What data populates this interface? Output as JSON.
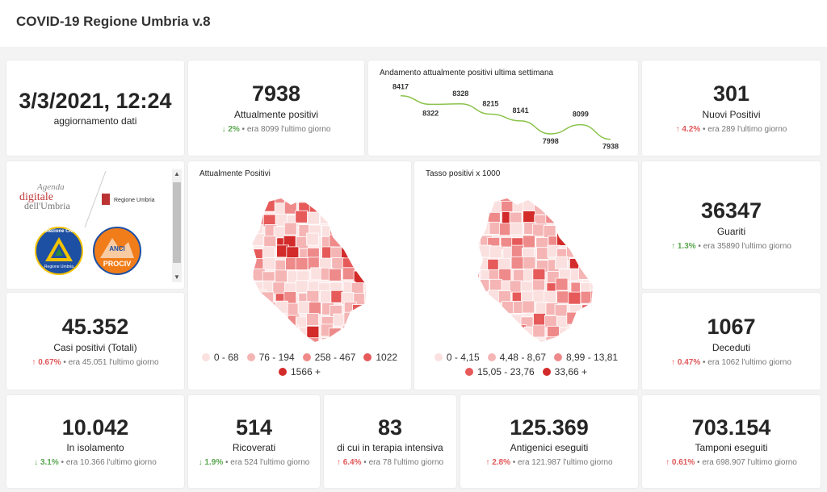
{
  "header": {
    "title": "COVID-19 Regione Umbria v.8"
  },
  "update": {
    "datetime": "3/3/2021, 12:24",
    "label": "aggiornamento dati"
  },
  "positivi": {
    "value": "7938",
    "label": "Attualmente positivi",
    "pct": "2%",
    "prev": "era 8099 l'ultimo giorno",
    "direction": "down"
  },
  "trend_chart": {
    "title": "Andamento attualmente positivi ultima settimana",
    "chart_data": {
      "type": "line",
      "values": [
        8417,
        8322,
        8328,
        8215,
        8141,
        7998,
        8099,
        7938
      ],
      "labels": [
        "8417",
        "8322",
        "8328",
        "8215",
        "8141",
        "7998",
        "8099",
        "7938"
      ],
      "color": "#8bc34a"
    }
  },
  "nuovi": {
    "value": "301",
    "label": "Nuovi Positivi",
    "pct": "4.2%",
    "prev": "era 289 l'ultimo giorno",
    "direction": "up"
  },
  "logos": {
    "agenda_line1": "Agenda",
    "agenda_line2": "digitale",
    "agenda_line3": "dell'Umbria",
    "regione": "Regione Umbria",
    "protezione": "Protezione Civile",
    "protezione_sub": "Regione Umbria",
    "anci": "ANCI",
    "prociv": "PROCIV"
  },
  "map1": {
    "title": "Attualmente Positivi",
    "legend": [
      "0 - 68",
      "76 - 194",
      "258 - 467",
      "1022",
      "1566 +"
    ],
    "colors": [
      "#fbe0e0",
      "#f5b5b5",
      "#ef8a8a",
      "#e65a5a",
      "#d32a2a"
    ]
  },
  "map2": {
    "title": "Tasso positivi x 1000",
    "legend": [
      "0 - 4,15",
      "4,48 - 8,67",
      "8,99 - 13,81",
      "15,05 - 23,76",
      "33,66 +"
    ],
    "colors": [
      "#fbe0e0",
      "#f5b5b5",
      "#ef8a8a",
      "#e65a5a",
      "#d32a2a"
    ]
  },
  "guariti": {
    "value": "36347",
    "label": "Guariti",
    "pct": "1.3%",
    "prev": "era 35890 l'ultimo giorno",
    "direction": "up"
  },
  "casi": {
    "value": "45.352",
    "label": "Casi positivi (Totali)",
    "pct": "0.67%",
    "prev": "era 45.051 l'ultimo giorno",
    "direction": "up"
  },
  "deceduti": {
    "value": "1067",
    "label": "Deceduti",
    "pct": "0.47%",
    "prev": "era 1062 l'ultimo giorno",
    "direction": "up"
  },
  "isolamento": {
    "value": "10.042",
    "label": "In isolamento",
    "pct": "3.1%",
    "prev": "era 10.366 l'ultimo giorno",
    "direction": "down"
  },
  "ricoverati": {
    "value": "514",
    "label": "Ricoverati",
    "pct": "1.9%",
    "prev": "era 524 l'ultimo giorno",
    "direction": "down"
  },
  "terapia": {
    "value": "83",
    "label": "di cui in terapia intensiva",
    "pct": "6.4%",
    "prev": "era 78 l'ultimo giorno",
    "direction": "up"
  },
  "antigenici": {
    "value": "125.369",
    "label": "Antigenici eseguiti",
    "pct": "2.8%",
    "prev": "era 121.987 l'ultimo giorno",
    "direction": "up"
  },
  "tamponi": {
    "value": "703.154",
    "label": "Tamponi eseguiti",
    "pct": "0.61%",
    "prev": "era 698.907 l'ultimo giorno",
    "direction": "up"
  }
}
